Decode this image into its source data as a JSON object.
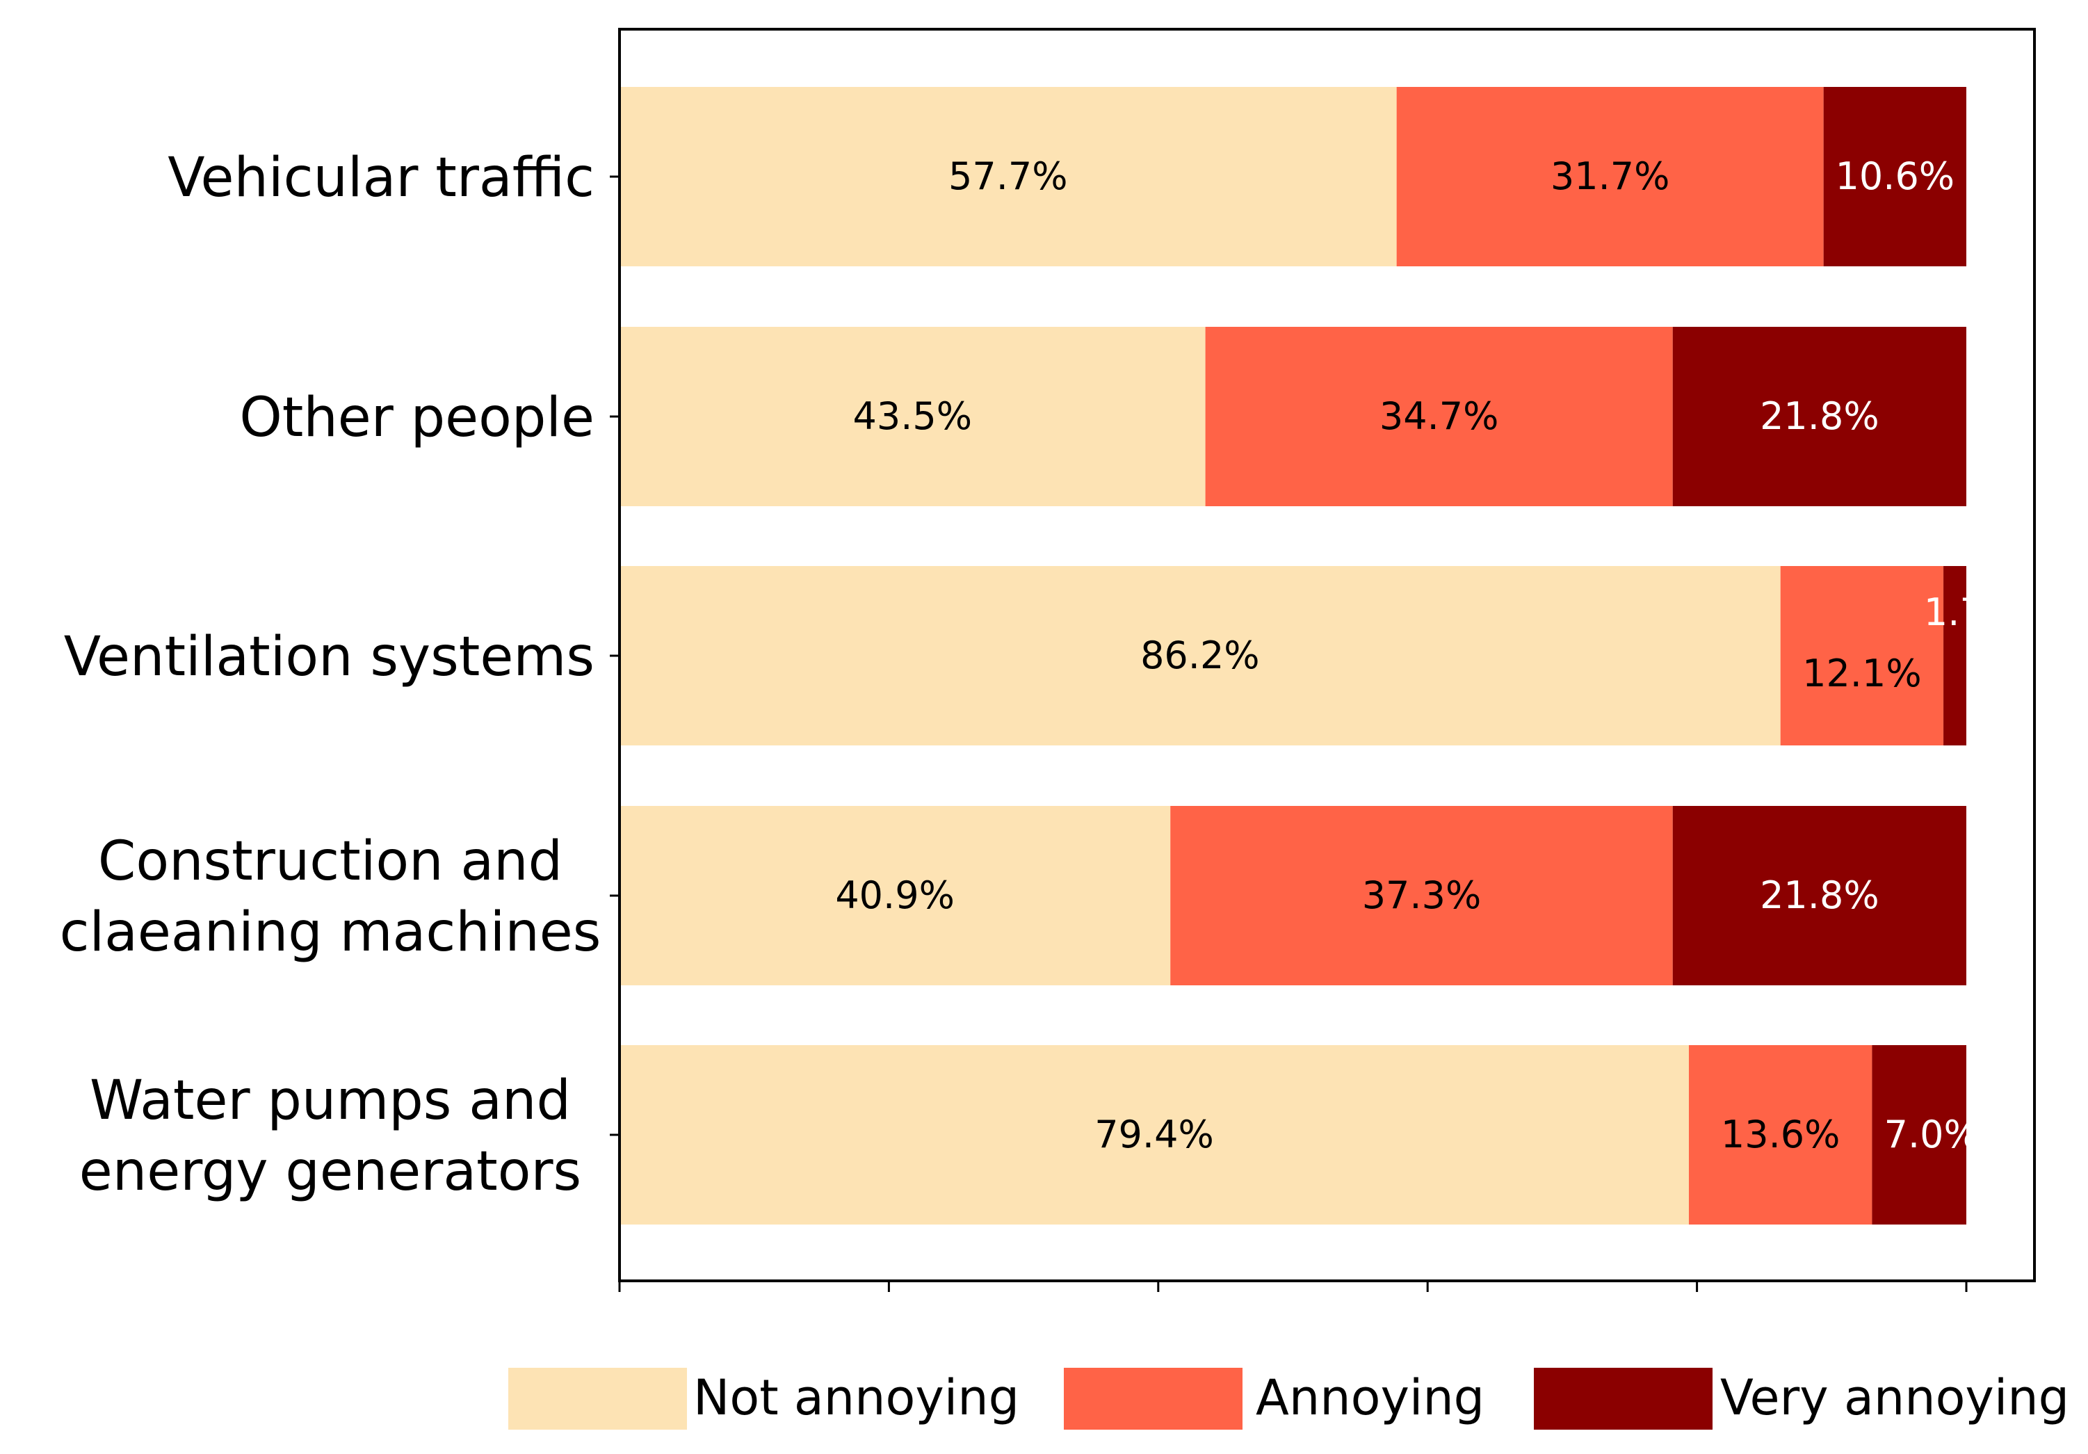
{
  "chart_data": {
    "type": "bar",
    "orientation": "horizontal",
    "stacked": true,
    "title": "",
    "xlabel": "",
    "ylabel": "",
    "xlim": [
      0,
      105
    ],
    "x_ticks": [
      0,
      20,
      40,
      60,
      80,
      100
    ],
    "x_tick_labels_shown": false,
    "grid": false,
    "categories": [
      [
        "Vehicular traffic"
      ],
      [
        "Other people"
      ],
      [
        "Ventilation systems"
      ],
      [
        "Construction and",
        "claeaning machines"
      ],
      [
        "Water pumps and",
        "energy generators"
      ]
    ],
    "series": [
      {
        "name": "Not annoying",
        "color": "#FDE3B4",
        "label_color": "#000000",
        "values": [
          57.7,
          43.5,
          86.2,
          40.9,
          79.4
        ],
        "labels": [
          "57.7%",
          "43.5%",
          "86.2%",
          "40.9%",
          "79.4%"
        ]
      },
      {
        "name": "Annoying",
        "color": "#FF6347",
        "label_color": "#000000",
        "values": [
          31.7,
          34.7,
          12.1,
          37.3,
          13.6
        ],
        "labels": [
          "31.7%",
          "34.7%",
          "12.1%",
          "37.3%",
          "13.6%"
        ]
      },
      {
        "name": "Very annoying",
        "color": "#8B0000",
        "label_color": "#FFFFFF",
        "values": [
          10.6,
          21.8,
          1.7,
          21.8,
          7.0
        ],
        "labels": [
          "10.6%",
          "21.8%",
          "1.7%",
          "21.8%",
          "7.0%"
        ]
      }
    ],
    "legend_position": "bottom"
  }
}
